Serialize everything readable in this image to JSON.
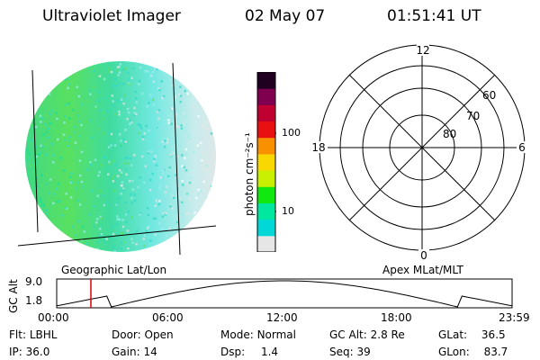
{
  "header": {
    "title": "Ultraviolet Imager",
    "date": "02 May 07",
    "time": "01:51:41 UT"
  },
  "colorbar": {
    "unit_label": "photon cm⁻²s⁻¹",
    "ticks": [
      "100",
      "10"
    ],
    "colors": [
      "#e6e6e6",
      "#00d8d8",
      "#00e8a0",
      "#10e810",
      "#c8f000",
      "#f8d800",
      "#f89000",
      "#e81010",
      "#c00030",
      "#800050",
      "#200020"
    ]
  },
  "polar_plot": {
    "mlt_labels": {
      "top": "12",
      "left": "18",
      "right": "6",
      "bottom": "0"
    },
    "lat_labels": [
      "60",
      "70",
      "80"
    ]
  },
  "projection_labels": {
    "left": "Geographic Lat/Lon",
    "right": "Apex MLat/MLT"
  },
  "altitude_panel": {
    "ylabel": "GC Alt",
    "yticks": [
      "9.0",
      "1.8"
    ],
    "xticks": [
      "00:00",
      "06:00",
      "12:00",
      "18:00",
      "23:59"
    ]
  },
  "info": {
    "row1": [
      {
        "label": "Flt:",
        "value": "LBHL"
      },
      {
        "label": "Door:",
        "value": "Open"
      },
      {
        "label": "Mode:",
        "value": "Normal"
      },
      {
        "label": "GC Alt:",
        "value": "2.8 Re"
      },
      {
        "label": "GLat:",
        "value": "36.5"
      }
    ],
    "row2": [
      {
        "label": "IP:",
        "value": "36.0"
      },
      {
        "label": "Gain:",
        "value": "14"
      },
      {
        "label": "Dsp:",
        "value": "1.4"
      },
      {
        "label": "Seq:",
        "value": "39"
      },
      {
        "label": "GLon:",
        "value": "83.7"
      }
    ]
  }
}
